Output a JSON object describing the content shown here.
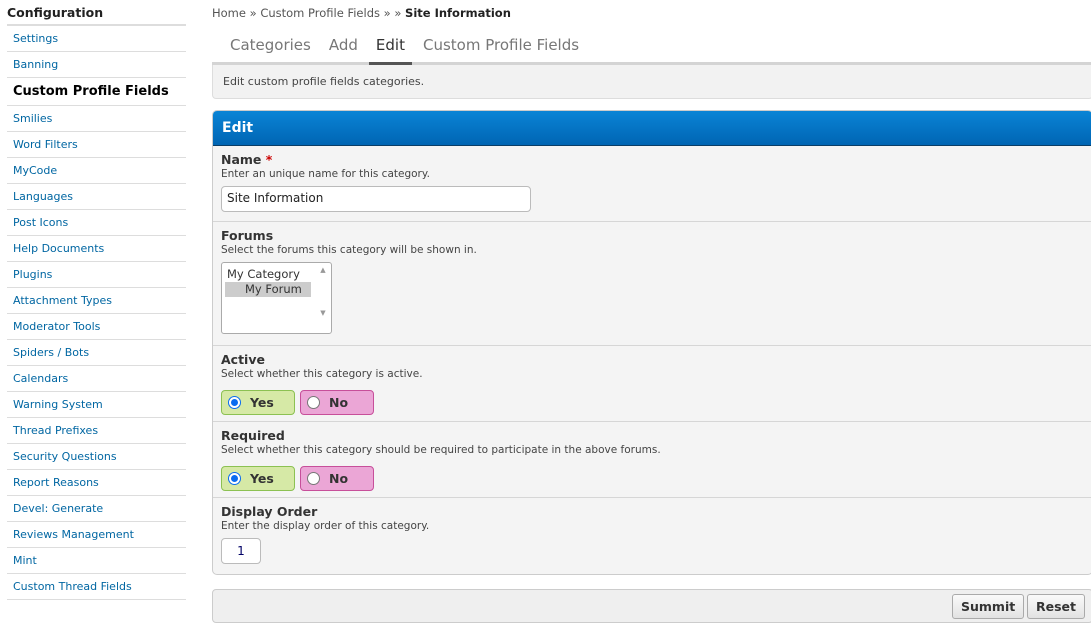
{
  "sidebar": {
    "title": "Configuration",
    "items": [
      "Settings",
      "Banning",
      "Custom Profile Fields",
      "Smilies",
      "Word Filters",
      "MyCode",
      "Languages",
      "Post Icons",
      "Help Documents",
      "Plugins",
      "Attachment Types",
      "Moderator Tools",
      "Spiders / Bots",
      "Calendars",
      "Warning System",
      "Thread Prefixes",
      "Security Questions",
      "Report Reasons",
      "Devel: Generate",
      "Reviews Management",
      "Mint",
      "Custom Thread Fields"
    ],
    "active_index": 2
  },
  "breadcrumb": {
    "home": "Home",
    "sep": "»",
    "section": "Custom Profile Fields",
    "extra_sep": "» »",
    "current": "Site Information"
  },
  "tabs": [
    "Categories",
    "Add",
    "Edit",
    "Custom Profile Fields"
  ],
  "active_tab": "Edit",
  "description": "Edit custom profile fields categories.",
  "panel": {
    "title": "Edit",
    "name": {
      "label": "Name",
      "required_mark": "*",
      "hint": "Enter an unique name for this category.",
      "value": "Site Information"
    },
    "forums": {
      "label": "Forums",
      "hint": "Select the forums this category will be shown in.",
      "options": [
        "My Category",
        "My Forum"
      ],
      "selected": "My Forum"
    },
    "active": {
      "label": "Active",
      "hint": "Select whether this category is active.",
      "yes": "Yes",
      "no": "No",
      "value": "Yes"
    },
    "required": {
      "label": "Required",
      "hint": "Select whether this category should be required to participate in the above forums.",
      "yes": "Yes",
      "no": "No",
      "value": "Yes"
    },
    "display_order": {
      "label": "Display Order",
      "hint": "Enter the display order of this category.",
      "value": "1"
    }
  },
  "buttons": {
    "submit": "Summit",
    "reset": "Reset"
  },
  "colors": {
    "header_blue": "#0072c6",
    "yes_green": "#d6e9a6",
    "no_pink": "#eba6d6",
    "link": "#0066a2"
  }
}
